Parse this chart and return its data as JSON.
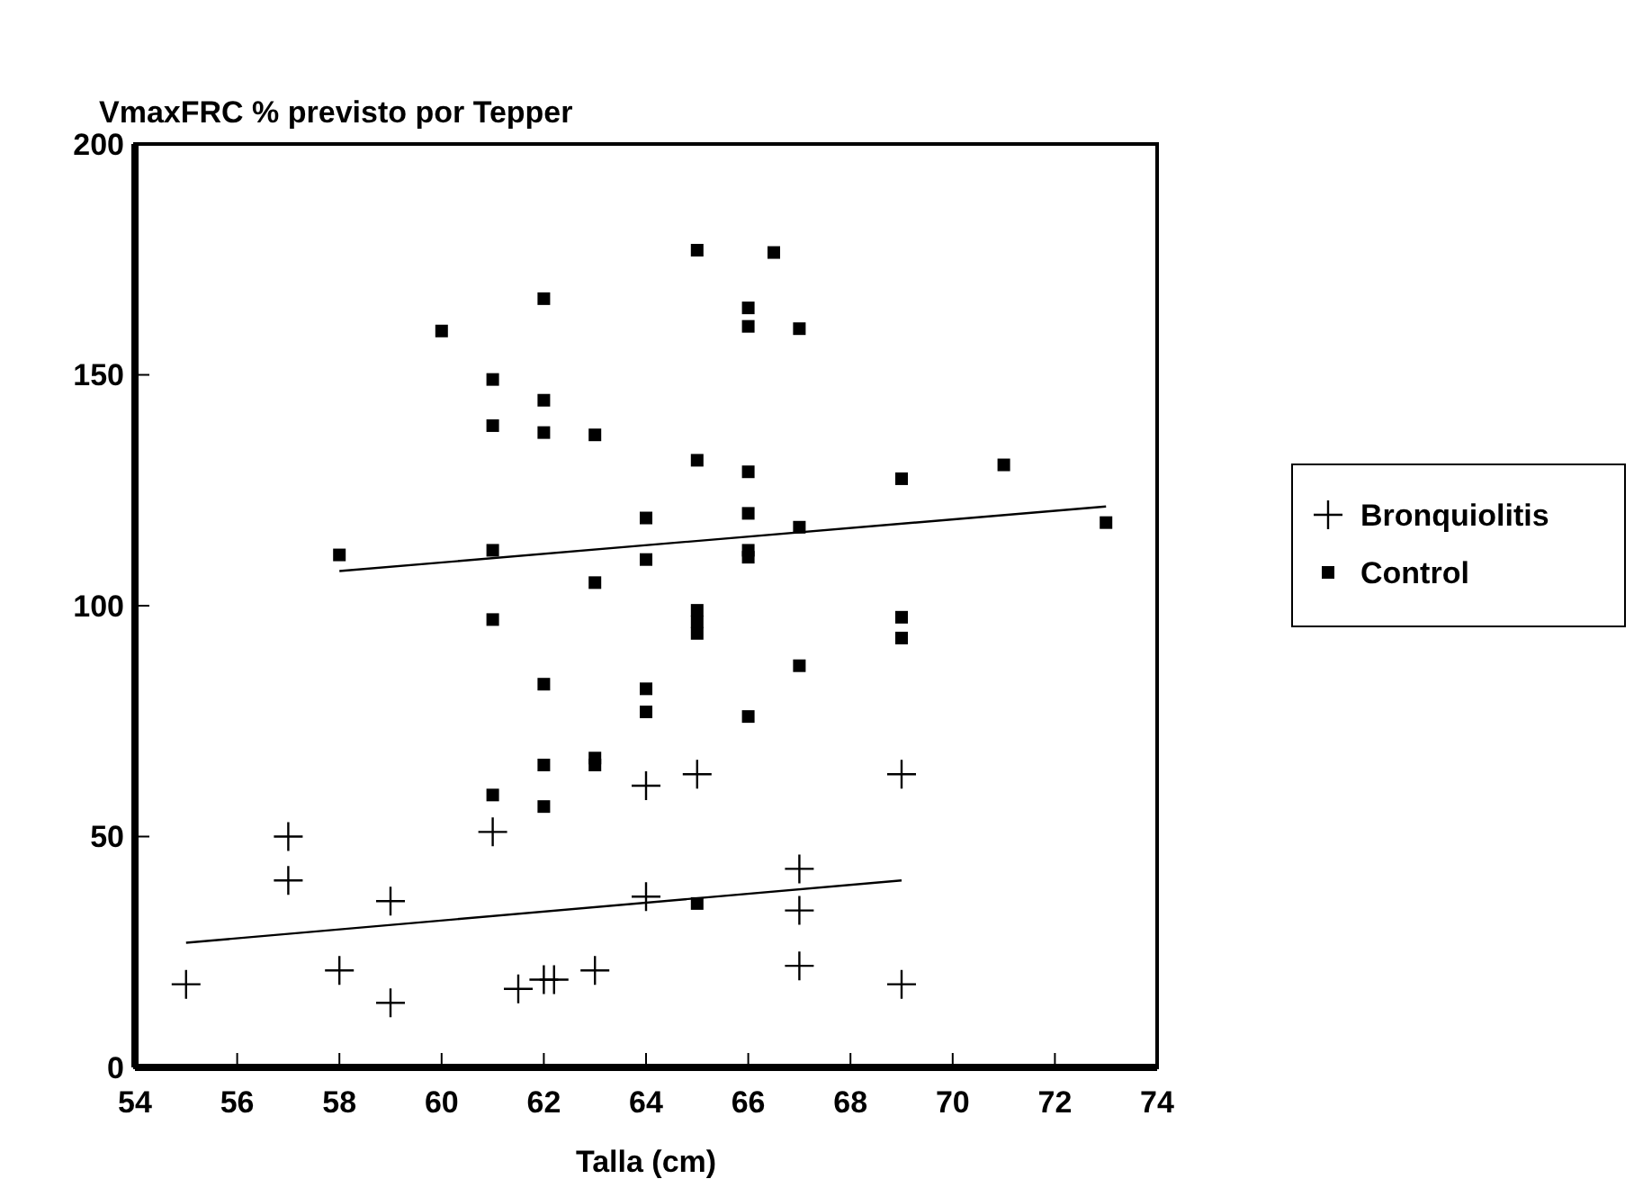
{
  "chart_data": {
    "type": "scatter",
    "ylabel": "VmaxFRC % previsto por Tepper",
    "xlabel": "Talla (cm)",
    "xlim": [
      54,
      74
    ],
    "xticks": [
      54,
      56,
      58,
      60,
      62,
      64,
      66,
      68,
      70,
      72,
      74
    ],
    "ylim": [
      0,
      200
    ],
    "yticks": [
      0,
      50,
      100,
      150,
      200
    ],
    "grid": false,
    "legend": "right",
    "series": [
      {
        "name": "Bronquiolitis",
        "color": "#000000",
        "marker": "cross",
        "x": [
          55,
          57,
          57,
          58,
          59,
          59,
          61,
          61.5,
          62,
          62.2,
          63,
          64,
          64,
          65,
          67,
          67,
          67,
          69,
          69
        ],
        "values": [
          18,
          50,
          40.5,
          21,
          36,
          14,
          51,
          17,
          19,
          19,
          21,
          61,
          37,
          63.5,
          43,
          34,
          22,
          63.5,
          18
        ]
      },
      {
        "name": "Control",
        "color": "#000000",
        "marker": "square",
        "x": [
          58,
          60,
          61,
          61,
          61,
          61,
          61,
          62,
          62,
          62,
          62,
          62,
          62,
          63,
          63,
          63,
          63,
          64,
          64,
          64,
          64,
          65,
          65,
          65,
          65,
          65,
          65,
          66,
          66,
          66,
          66,
          66,
          66,
          66,
          66.5,
          67,
          67,
          67,
          69,
          69,
          69,
          71,
          73
        ],
        "values": [
          111,
          159.5,
          149,
          139,
          112,
          97,
          59,
          166.5,
          144.5,
          137.5,
          83,
          65.5,
          56.5,
          137,
          105,
          67,
          65.5,
          119,
          110,
          82,
          77,
          177,
          131.5,
          99,
          96.5,
          94,
          35.5,
          164.5,
          160.5,
          129,
          120,
          112,
          110.5,
          76,
          176.5,
          160,
          117,
          87,
          127.5,
          97.5,
          93,
          130.5,
          118
        ]
      },
      {
        "type": "line",
        "color": "#000000",
        "x": [
          55,
          69
        ],
        "values": [
          27,
          40.5
        ]
      },
      {
        "type": "line",
        "color": "#000000",
        "x": [
          58,
          73
        ],
        "values": [
          107.5,
          121.5
        ]
      }
    ]
  }
}
